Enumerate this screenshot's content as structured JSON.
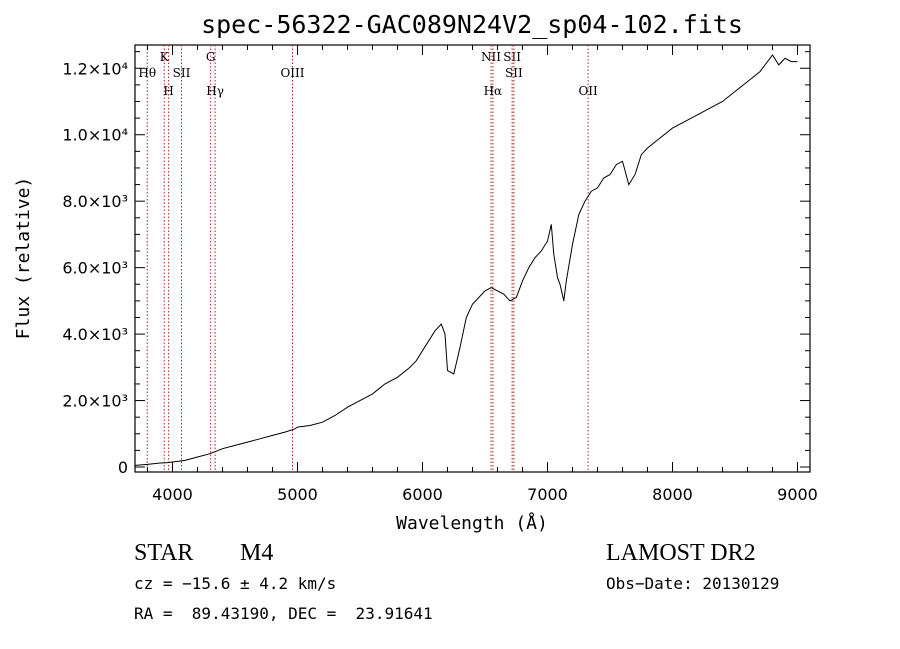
{
  "chart_data": {
    "type": "line",
    "title": "spec-56322-GAC089N24V2_sp04-102.fits",
    "xlabel": "Wavelength (Å)",
    "ylabel": "Flux (relative)",
    "xlim": [
      3700,
      9100
    ],
    "ylim": [
      -150,
      12700
    ],
    "x_ticks": [
      {
        "value": 4000,
        "label": "4000"
      },
      {
        "value": 5000,
        "label": "5000"
      },
      {
        "value": 6000,
        "label": "6000"
      },
      {
        "value": 7000,
        "label": "7000"
      },
      {
        "value": 8000,
        "label": "8000"
      },
      {
        "value": 9000,
        "label": "9000"
      }
    ],
    "y_ticks": [
      {
        "value": 0,
        "label": "0"
      },
      {
        "value": 2000,
        "label": "2.0×10³"
      },
      {
        "value": 4000,
        "label": "4.0×10³"
      },
      {
        "value": 6000,
        "label": "6.0×10³"
      },
      {
        "value": 8000,
        "label": "8.0×10³"
      },
      {
        "value": 10000,
        "label": "1.0×10⁴"
      },
      {
        "value": 12000,
        "label": "1.2×10⁴"
      }
    ],
    "grid": false,
    "line_color": "#000000",
    "marker_color": "#b22222",
    "series": [
      {
        "x": [
          3700,
          3800,
          3900,
          3950,
          4000,
          4100,
          4200,
          4300,
          4400,
          4500,
          4600,
          4700,
          4800,
          4900,
          4980,
          5000,
          5100,
          5200,
          5300,
          5400,
          5500,
          5600,
          5700,
          5800,
          5900,
          5950,
          6000,
          6050,
          6100,
          6150,
          6180,
          6200,
          6250,
          6300,
          6350,
          6400,
          6450,
          6500,
          6550,
          6600,
          6650,
          6700,
          6750,
          6800,
          6850,
          6900,
          6950,
          7000,
          7030,
          7050,
          7080,
          7100,
          7130,
          7150,
          7200,
          7250,
          7300,
          7350,
          7400,
          7450,
          7500,
          7550,
          7600,
          7650,
          7700,
          7750,
          7800,
          7900,
          8000,
          8100,
          8200,
          8300,
          8400,
          8500,
          8600,
          8700,
          8800,
          8850,
          8900,
          8950,
          9000
        ],
        "y": [
          50,
          80,
          120,
          130,
          150,
          200,
          300,
          400,
          550,
          650,
          750,
          850,
          950,
          1050,
          1150,
          1200,
          1250,
          1350,
          1550,
          1800,
          2000,
          2200,
          2500,
          2700,
          3000,
          3200,
          3500,
          3800,
          4100,
          4300,
          4000,
          2900,
          2800,
          3600,
          4500,
          4900,
          5100,
          5300,
          5400,
          5300,
          5200,
          5000,
          5100,
          5600,
          6000,
          6300,
          6500,
          6800,
          7300,
          6400,
          5700,
          5500,
          5000,
          5600,
          6700,
          7600,
          8000,
          8300,
          8400,
          8700,
          8800,
          9100,
          9200,
          8500,
          8800,
          9400,
          9600,
          9900,
          10200,
          10400,
          10600,
          10800,
          11000,
          11300,
          11600,
          11900,
          12400,
          12100,
          12300,
          12200,
          12200
        ]
      }
    ],
    "emission_lines": [
      {
        "wavelength": 3798,
        "label": "Hθ",
        "row": 2
      },
      {
        "wavelength": 3934,
        "label": "K",
        "row": 1
      },
      {
        "wavelength": 3969,
        "label": "H",
        "row": 3
      },
      {
        "wavelength": 4072,
        "label": "SII",
        "row": 2
      },
      {
        "wavelength": 4305,
        "label": "G",
        "row": 1
      },
      {
        "wavelength": 4341,
        "label": "Hγ",
        "row": 3
      },
      {
        "wavelength": 4960,
        "label": "OIII",
        "row": 2
      },
      {
        "wavelength": 6548,
        "label": "NII",
        "row": 1
      },
      {
        "wavelength": 6563,
        "label": "Hα",
        "row": 3
      },
      {
        "wavelength": 6717,
        "label": "SII",
        "row": 1
      },
      {
        "wavelength": 6731,
        "label": "SII",
        "row": 2
      },
      {
        "wavelength": 7325,
        "label": "OII",
        "row": 3
      }
    ]
  },
  "info": {
    "class_label": "STAR",
    "subclass": "M4",
    "survey": "LAMOST DR2",
    "cz": "cz = −15.6 ± 4.2 km/s",
    "obs_date": "Obs−Date: 20130129",
    "coords": "RA =  89.43190, DEC =  23.91641"
  }
}
